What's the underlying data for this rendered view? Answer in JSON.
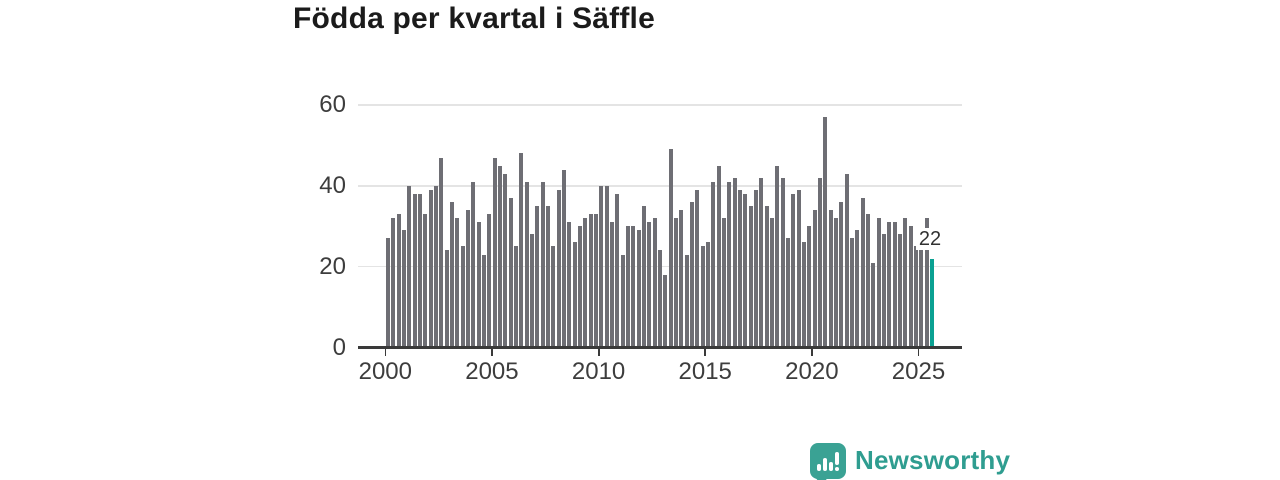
{
  "title": "Födda per kvartal i Säffle",
  "chart_data": {
    "type": "bar",
    "title": "Födda per kvartal i Säffle",
    "x_start": "2000 Q1",
    "x_end": "2025 Q3",
    "frequency": "quarterly",
    "values": [
      27,
      32,
      33,
      29,
      40,
      38,
      38,
      33,
      39,
      40,
      47,
      24,
      36,
      32,
      25,
      34,
      41,
      31,
      23,
      33,
      47,
      45,
      43,
      37,
      25,
      48,
      41,
      28,
      35,
      41,
      35,
      25,
      39,
      44,
      31,
      26,
      30,
      32,
      33,
      33,
      40,
      40,
      31,
      38,
      23,
      30,
      30,
      29,
      35,
      31,
      32,
      24,
      18,
      49,
      32,
      34,
      23,
      36,
      39,
      25,
      26,
      41,
      45,
      32,
      41,
      42,
      39,
      38,
      35,
      39,
      42,
      35,
      32,
      45,
      42,
      27,
      38,
      39,
      26,
      30,
      34,
      42,
      57,
      34,
      32,
      36,
      43,
      27,
      29,
      37,
      33,
      21,
      32,
      28,
      31,
      31,
      28,
      32,
      30,
      25,
      25,
      32,
      22
    ],
    "highlight_last": true,
    "highlight_label": "22",
    "yticks": [
      0,
      20,
      40,
      60
    ],
    "xticks": [
      "2000",
      "2005",
      "2010",
      "2015",
      "2020",
      "2025"
    ],
    "ylim": [
      0,
      60
    ],
    "grid": "horizontal",
    "legend": "none",
    "colors": {
      "bar": "#6e6e74",
      "highlight": "#0aa192",
      "gridline": "#e4e4e4",
      "axis": "#3a3a3a",
      "tick_label": "#3d3d3d",
      "title": "#1b1b1b"
    }
  },
  "branding": {
    "name": "Newsworthy",
    "color": "#2f9d90",
    "icon": "newsworthy-speech-bubble-chart-icon"
  }
}
